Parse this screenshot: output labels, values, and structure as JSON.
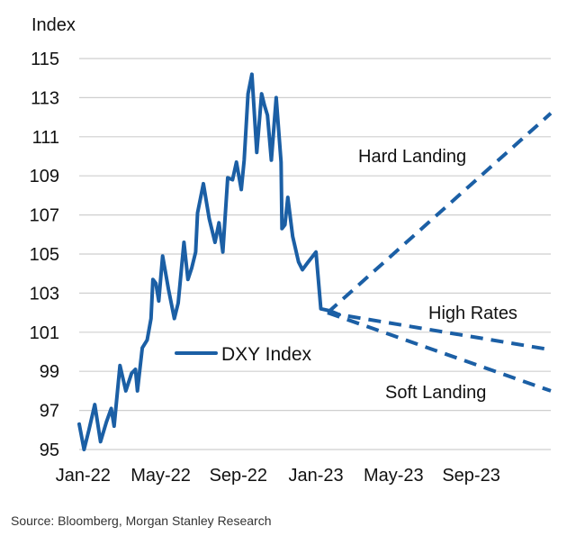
{
  "chart_data": {
    "type": "line",
    "ylabel": "Index",
    "ylim": [
      95,
      115
    ],
    "yticks": [
      95,
      97,
      99,
      101,
      103,
      105,
      107,
      109,
      111,
      113,
      115
    ],
    "xlim": [
      -0.2,
      24.1
    ],
    "x_unit": "months since Jan-22",
    "xticks": [
      {
        "x": 0,
        "label": "Jan-22"
      },
      {
        "x": 4,
        "label": "May-22"
      },
      {
        "x": 8,
        "label": "Sep-22"
      },
      {
        "x": 12,
        "label": "Jan-23"
      },
      {
        "x": 16,
        "label": "May-23"
      },
      {
        "x": 20,
        "label": "Sep-23"
      }
    ],
    "grid": true,
    "series": [
      {
        "name": "DXY Index",
        "style": "solid",
        "color": "#1b5fa5",
        "points": [
          [
            -0.2,
            96.3
          ],
          [
            0.05,
            95.0
          ],
          [
            0.3,
            96.0
          ],
          [
            0.6,
            97.3
          ],
          [
            0.9,
            95.4
          ],
          [
            1.2,
            96.4
          ],
          [
            1.45,
            97.1
          ],
          [
            1.6,
            96.2
          ],
          [
            1.9,
            99.3
          ],
          [
            2.2,
            98.0
          ],
          [
            2.5,
            98.9
          ],
          [
            2.7,
            99.1
          ],
          [
            2.8,
            98.0
          ],
          [
            3.05,
            100.2
          ],
          [
            3.3,
            100.6
          ],
          [
            3.5,
            101.7
          ],
          [
            3.6,
            103.7
          ],
          [
            3.75,
            103.5
          ],
          [
            3.9,
            102.6
          ],
          [
            4.1,
            104.9
          ],
          [
            4.4,
            103.2
          ],
          [
            4.7,
            101.7
          ],
          [
            4.9,
            102.5
          ],
          [
            5.2,
            105.6
          ],
          [
            5.4,
            103.7
          ],
          [
            5.6,
            104.3
          ],
          [
            5.8,
            105.1
          ],
          [
            5.9,
            107.1
          ],
          [
            6.2,
            108.6
          ],
          [
            6.5,
            106.8
          ],
          [
            6.8,
            105.6
          ],
          [
            7.0,
            106.6
          ],
          [
            7.2,
            105.1
          ],
          [
            7.45,
            108.9
          ],
          [
            7.7,
            108.8
          ],
          [
            7.9,
            109.7
          ],
          [
            8.15,
            108.3
          ],
          [
            8.3,
            109.8
          ],
          [
            8.5,
            113.2
          ],
          [
            8.7,
            114.2
          ],
          [
            8.95,
            110.2
          ],
          [
            9.2,
            113.2
          ],
          [
            9.35,
            112.6
          ],
          [
            9.5,
            112.1
          ],
          [
            9.7,
            109.8
          ],
          [
            9.95,
            113.0
          ],
          [
            10.2,
            109.7
          ],
          [
            10.25,
            106.3
          ],
          [
            10.4,
            106.5
          ],
          [
            10.55,
            107.9
          ],
          [
            10.8,
            105.9
          ],
          [
            11.1,
            104.6
          ],
          [
            11.3,
            104.2
          ],
          [
            11.6,
            104.6
          ],
          [
            12.0,
            105.1
          ],
          [
            12.25,
            102.2
          ],
          [
            12.7,
            102.1
          ],
          [
            13.2,
            101.9
          ]
        ]
      },
      {
        "name": "Hard Landing",
        "style": "dashed",
        "color": "#1b5fa5",
        "points": [
          [
            12.6,
            102.0
          ],
          [
            24.1,
            112.2
          ]
        ]
      },
      {
        "name": "High Rates",
        "style": "dashed",
        "color": "#1b5fa5",
        "points": [
          [
            12.6,
            102.0
          ],
          [
            24.1,
            100.1
          ]
        ]
      },
      {
        "name": "Soft Landing",
        "style": "dashed",
        "color": "#1b5fa5",
        "points": [
          [
            12.6,
            102.0
          ],
          [
            24.1,
            98.0
          ]
        ]
      }
    ],
    "annotations": [
      "Hard Landing",
      "High Rates",
      "Soft Landing"
    ],
    "legend": {
      "entries": [
        "DXY Index"
      ],
      "placement": "center"
    }
  },
  "source": "Source: Bloomberg, Morgan Stanley Research"
}
